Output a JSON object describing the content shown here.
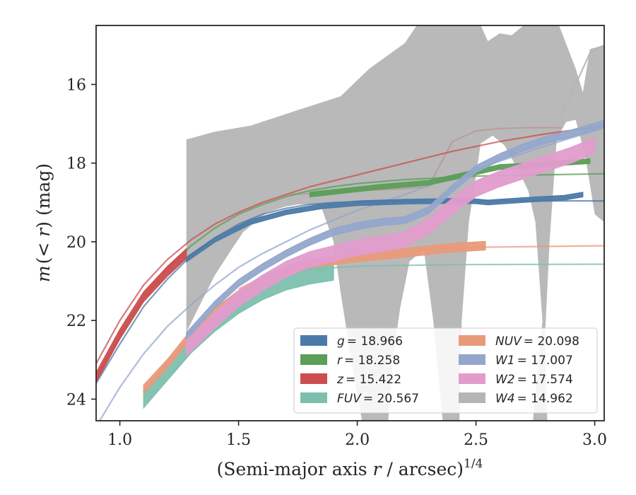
{
  "chart_data": {
    "type": "line",
    "xlabel_main": "(Semi-major axis ",
    "xlabel_var": "r",
    "xlabel_rest": " / arcsec)",
    "xlabel_sup": "1/4",
    "ylabel_main": "m",
    "ylabel_rest": "(< ",
    "ylabel_var": "r",
    "ylabel_end": ") (mag)",
    "xlim": [
      0.9,
      3.04
    ],
    "ylim": [
      24.55,
      14.5
    ],
    "y_inverted": true,
    "xticks": [
      1.0,
      1.5,
      2.0,
      2.5,
      3.0
    ],
    "xtick_labels": [
      "1.0",
      "1.5",
      "2.0",
      "2.5",
      "3.0"
    ],
    "yticks": [
      16,
      18,
      20,
      22,
      24
    ],
    "ytick_labels": [
      "16",
      "18",
      "20",
      "22",
      "24"
    ],
    "grid": false,
    "legend_position": "lower-right",
    "series": [
      {
        "name": "g = 18.966",
        "label_var": "g",
        "label_val": "= 18.966",
        "color": "#4c7aa8",
        "band": [
          [
            1.28,
            20.45
          ],
          [
            1.4,
            19.95
          ],
          [
            1.55,
            19.5
          ],
          [
            1.7,
            19.25
          ],
          [
            1.85,
            19.1
          ],
          [
            2.0,
            19.02
          ],
          [
            2.2,
            18.98
          ],
          [
            2.4,
            18.96
          ],
          [
            2.5,
            18.97
          ],
          [
            2.55,
            19.0
          ],
          [
            2.62,
            18.97
          ],
          [
            2.75,
            18.92
          ],
          [
            2.87,
            18.88
          ],
          [
            2.95,
            18.8
          ]
        ],
        "band_width": 0.12,
        "model": [
          [
            0.9,
            23.6
          ],
          [
            1.0,
            22.6
          ],
          [
            1.1,
            21.65
          ],
          [
            1.2,
            20.95
          ],
          [
            1.3,
            20.35
          ],
          [
            1.4,
            19.9
          ],
          [
            1.5,
            19.55
          ],
          [
            1.6,
            19.3
          ],
          [
            1.7,
            19.15
          ],
          [
            1.8,
            19.05
          ],
          [
            1.9,
            19.0
          ],
          [
            2.0,
            18.98
          ],
          [
            2.2,
            18.97
          ],
          [
            2.6,
            18.96
          ],
          [
            3.04,
            18.96
          ]
        ]
      },
      {
        "name": "r = 18.258",
        "label_var": "r",
        "label_val": "= 18.258",
        "color": "#5a9e57",
        "band": [
          [
            1.8,
            18.8
          ],
          [
            1.95,
            18.7
          ],
          [
            2.1,
            18.6
          ],
          [
            2.3,
            18.5
          ],
          [
            2.45,
            18.3
          ],
          [
            2.6,
            18.1
          ],
          [
            2.75,
            18.05
          ],
          [
            2.9,
            17.98
          ],
          [
            2.98,
            17.95
          ]
        ],
        "band_width": 0.12,
        "model": [
          [
            0.9,
            23.5
          ],
          [
            1.0,
            22.4
          ],
          [
            1.1,
            21.45
          ],
          [
            1.2,
            20.7
          ],
          [
            1.3,
            20.1
          ],
          [
            1.4,
            19.65
          ],
          [
            1.5,
            19.3
          ],
          [
            1.6,
            19.05
          ],
          [
            1.7,
            18.85
          ],
          [
            1.8,
            18.7
          ],
          [
            1.9,
            18.6
          ],
          [
            2.0,
            18.52
          ],
          [
            2.2,
            18.42
          ],
          [
            2.5,
            18.33
          ],
          [
            3.04,
            18.27
          ]
        ]
      },
      {
        "name": "z = 15.422",
        "label_var": "z",
        "label_val": "= 15.422",
        "color": "#cc4d4d",
        "band": [
          [
            0.9,
            23.45
          ],
          [
            1.0,
            22.35
          ],
          [
            1.1,
            21.4
          ],
          [
            1.2,
            20.75
          ],
          [
            1.28,
            20.3
          ]
        ],
        "band_width": 0.25,
        "model": [
          [
            0.9,
            23.1
          ],
          [
            1.0,
            22.0
          ],
          [
            1.1,
            21.1
          ],
          [
            1.2,
            20.45
          ],
          [
            1.3,
            19.95
          ],
          [
            1.4,
            19.55
          ],
          [
            1.5,
            19.25
          ],
          [
            1.6,
            19.0
          ],
          [
            1.7,
            18.8
          ],
          [
            1.8,
            18.6
          ],
          [
            2.0,
            18.3
          ],
          [
            2.2,
            18.0
          ],
          [
            2.4,
            17.7
          ],
          [
            2.6,
            17.45
          ],
          [
            2.8,
            17.25
          ],
          [
            3.04,
            17.05
          ]
        ]
      },
      {
        "name": "FUV = 20.567",
        "label_var": "FUV",
        "label_val": "= 20.567",
        "color": "#7dbfae",
        "band": [
          [
            1.1,
            24.0
          ],
          [
            1.2,
            23.3
          ],
          [
            1.3,
            22.6
          ],
          [
            1.4,
            22.05
          ],
          [
            1.5,
            21.6
          ],
          [
            1.6,
            21.25
          ],
          [
            1.7,
            21.0
          ],
          [
            1.8,
            20.85
          ],
          [
            1.9,
            20.75
          ]
        ],
        "band_width": 0.45,
        "model": [
          [
            1.5,
            21.3
          ],
          [
            1.6,
            21.0
          ],
          [
            1.7,
            20.8
          ],
          [
            1.8,
            20.7
          ],
          [
            2.0,
            20.62
          ],
          [
            2.4,
            20.58
          ],
          [
            3.04,
            20.57
          ]
        ]
      },
      {
        "name": "NUV = 20.098",
        "label_var": "NUV",
        "label_val": "= 20.098",
        "color": "#e99a7a",
        "band": [
          [
            1.1,
            23.75
          ],
          [
            1.2,
            23.1
          ],
          [
            1.3,
            22.35
          ],
          [
            1.4,
            21.8
          ],
          [
            1.5,
            21.35
          ],
          [
            1.6,
            21.0
          ],
          [
            1.7,
            20.75
          ],
          [
            1.8,
            20.55
          ],
          [
            2.0,
            20.4
          ],
          [
            2.2,
            20.28
          ],
          [
            2.4,
            20.15
          ],
          [
            2.54,
            20.1
          ]
        ],
        "band_width": 0.22,
        "model": [
          [
            1.5,
            21.2
          ],
          [
            1.6,
            20.9
          ],
          [
            1.7,
            20.65
          ],
          [
            1.8,
            20.48
          ],
          [
            2.0,
            20.3
          ],
          [
            2.2,
            20.2
          ],
          [
            2.5,
            20.14
          ],
          [
            3.04,
            20.1
          ]
        ]
      },
      {
        "name": "W1 = 17.007",
        "label_var": "W1",
        "label_val": "= 17.007",
        "color": "#94a6cc",
        "band": [
          [
            1.28,
            22.4
          ],
          [
            1.4,
            21.6
          ],
          [
            1.5,
            21.05
          ],
          [
            1.6,
            20.65
          ],
          [
            1.7,
            20.3
          ],
          [
            1.8,
            20.0
          ],
          [
            1.9,
            19.75
          ],
          [
            2.0,
            19.6
          ],
          [
            2.1,
            19.5
          ],
          [
            2.2,
            19.45
          ],
          [
            2.3,
            19.2
          ],
          [
            2.4,
            18.65
          ],
          [
            2.5,
            18.15
          ],
          [
            2.6,
            17.85
          ],
          [
            2.7,
            17.6
          ],
          [
            2.8,
            17.4
          ],
          [
            2.9,
            17.25
          ],
          [
            3.04,
            17.0
          ]
        ],
        "band_width": 0.18,
        "model": [
          [
            0.9,
            24.7
          ],
          [
            1.0,
            23.7
          ],
          [
            1.1,
            22.85
          ],
          [
            1.2,
            22.15
          ],
          [
            1.3,
            21.6
          ],
          [
            1.4,
            21.1
          ],
          [
            1.5,
            20.65
          ],
          [
            1.6,
            20.3
          ],
          [
            1.7,
            20.0
          ],
          [
            1.8,
            19.7
          ],
          [
            1.9,
            19.45
          ],
          [
            2.0,
            19.2
          ],
          [
            2.2,
            18.8
          ],
          [
            2.4,
            18.35
          ],
          [
            2.6,
            17.95
          ],
          [
            2.8,
            17.55
          ],
          [
            3.04,
            17.1
          ]
        ]
      },
      {
        "name": "W2 = 17.574",
        "label_var": "W2",
        "label_val": "= 17.574",
        "color": "#e29ccc",
        "band": [
          [
            1.28,
            22.7
          ],
          [
            1.4,
            22.0
          ],
          [
            1.5,
            21.45
          ],
          [
            1.6,
            21.05
          ],
          [
            1.7,
            20.7
          ],
          [
            1.8,
            20.45
          ],
          [
            1.9,
            20.3
          ],
          [
            2.0,
            20.15
          ],
          [
            2.1,
            20.05
          ],
          [
            2.2,
            19.95
          ],
          [
            2.3,
            19.6
          ],
          [
            2.4,
            19.1
          ],
          [
            2.5,
            18.65
          ],
          [
            2.6,
            18.4
          ],
          [
            2.7,
            18.2
          ],
          [
            2.8,
            18.0
          ],
          [
            2.9,
            17.8
          ],
          [
            3.0,
            17.55
          ]
        ],
        "band_width": 0.4,
        "model": []
      },
      {
        "name": "W4 = 14.962",
        "label_var": "W4",
        "label_val": "= 14.962",
        "color": "#b5b5b5",
        "band_polygon": [
          [
            1.28,
            17.4
          ],
          [
            1.4,
            17.2
          ],
          [
            1.55,
            17.05
          ],
          [
            1.75,
            16.65
          ],
          [
            1.93,
            16.3
          ],
          [
            2.05,
            15.6
          ],
          [
            2.2,
            14.95
          ],
          [
            2.25,
            14.5
          ],
          [
            2.52,
            14.5
          ],
          [
            2.55,
            14.9
          ],
          [
            2.6,
            14.7
          ],
          [
            2.65,
            14.75
          ],
          [
            2.7,
            14.5
          ],
          [
            2.85,
            14.5
          ],
          [
            2.92,
            15.6
          ],
          [
            2.95,
            16.2
          ],
          [
            2.98,
            15.1
          ],
          [
            3.04,
            15.0
          ],
          [
            3.04,
            19.5
          ],
          [
            3.0,
            19.3
          ],
          [
            2.96,
            17.8
          ],
          [
            2.92,
            16.9
          ],
          [
            2.88,
            16.95
          ],
          [
            2.84,
            17.4
          ],
          [
            2.81,
            20.0
          ],
          [
            2.79,
            22.5
          ],
          [
            2.8,
            24.55
          ],
          [
            2.74,
            24.55
          ],
          [
            2.78,
            22.0
          ],
          [
            2.75,
            19.5
          ],
          [
            2.72,
            18.7
          ],
          [
            2.68,
            18.2
          ],
          [
            2.62,
            17.55
          ],
          [
            2.57,
            17.3
          ],
          [
            2.52,
            17.5
          ],
          [
            2.47,
            19.5
          ],
          [
            2.44,
            22.0
          ],
          [
            2.43,
            24.55
          ],
          [
            2.36,
            24.55
          ],
          [
            2.32,
            22.0
          ],
          [
            2.28,
            20.2
          ],
          [
            2.22,
            20.5
          ],
          [
            2.18,
            21.7
          ],
          [
            2.15,
            23.0
          ],
          [
            2.13,
            24.55
          ],
          [
            2.02,
            24.55
          ],
          [
            1.98,
            23.2
          ],
          [
            1.93,
            21.3
          ],
          [
            1.9,
            20.0
          ],
          [
            1.85,
            19.15
          ],
          [
            1.82,
            19.05
          ],
          [
            1.75,
            19.05
          ],
          [
            1.7,
            19.1
          ],
          [
            1.62,
            19.25
          ],
          [
            1.56,
            19.55
          ],
          [
            1.52,
            19.75
          ],
          [
            1.47,
            20.2
          ],
          [
            1.4,
            20.85
          ],
          [
            1.35,
            21.45
          ],
          [
            1.28,
            22.3
          ]
        ],
        "model": [
          [
            2.8,
            17.2
          ],
          [
            2.86,
            16.8
          ],
          [
            2.92,
            16.0
          ],
          [
            2.98,
            15.2
          ],
          [
            3.04,
            15.0
          ]
        ],
        "extra_line": [
          [
            1.72,
            18.8
          ],
          [
            1.85,
            18.75
          ],
          [
            2.0,
            18.7
          ],
          [
            2.1,
            18.68
          ],
          [
            2.2,
            18.65
          ],
          [
            2.3,
            18.6
          ],
          [
            2.4,
            17.45
          ],
          [
            2.5,
            17.18
          ],
          [
            2.6,
            17.12
          ],
          [
            2.7,
            17.1
          ],
          [
            2.8,
            17.1
          ],
          [
            2.86,
            17.1
          ]
        ]
      }
    ]
  }
}
